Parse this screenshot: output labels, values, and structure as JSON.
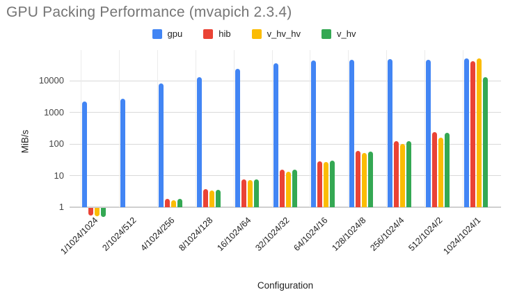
{
  "title": "GPU Packing Performance (mvapich 2.3.4)",
  "axes": {
    "y_title": "MiB/s",
    "x_title": "Configuration",
    "y_tick_labels": [
      "1",
      "10",
      "100",
      "1000",
      "10000"
    ]
  },
  "colors": {
    "gpu": "#4285F4",
    "hib": "#EA4335",
    "v_hv_hv": "#FBBC04",
    "v_hv": "#34A853",
    "title_text": "#757575",
    "axis_text": "#444444",
    "gridline": "#d9d9d9"
  },
  "chart_data": {
    "type": "bar",
    "title": "GPU Packing Performance (mvapich 2.3.4)",
    "xlabel": "Configuration",
    "ylabel": "MiB/s",
    "y_scale": "log",
    "y_ticks": [
      1,
      10,
      100,
      1000,
      10000
    ],
    "ylim": [
      0.4,
      60000
    ],
    "grid": true,
    "legend_position": "top",
    "categories": [
      "1/1024/1024",
      "2/1024/512",
      "4/1024/256",
      "8/1024/128",
      "16/1024/64",
      "32/1024/32",
      "64/1024/16",
      "128/1024/8",
      "256/1024/4",
      "512/1024/2",
      "1024/1024/1"
    ],
    "series": [
      {
        "name": "gpu",
        "color": "#4285F4",
        "values": [
          2200,
          2700,
          8000,
          13000,
          24000,
          35000,
          43000,
          46000,
          48000,
          46000,
          50000
        ]
      },
      {
        "name": "hib",
        "color": "#EA4335",
        "values": [
          0.57,
          null,
          1.8,
          3.7,
          7.5,
          15,
          28,
          60,
          120,
          240,
          42000
        ]
      },
      {
        "name": "v_hv_hv",
        "color": "#FBBC04",
        "values": [
          0.55,
          null,
          1.7,
          3.4,
          7.2,
          13.5,
          27,
          52,
          100,
          160,
          51000
        ]
      },
      {
        "name": "v_hv",
        "color": "#34A853",
        "values": [
          0.53,
          null,
          1.8,
          3.6,
          7.4,
          15,
          29,
          58,
          120,
          220,
          13000
        ]
      }
    ]
  }
}
